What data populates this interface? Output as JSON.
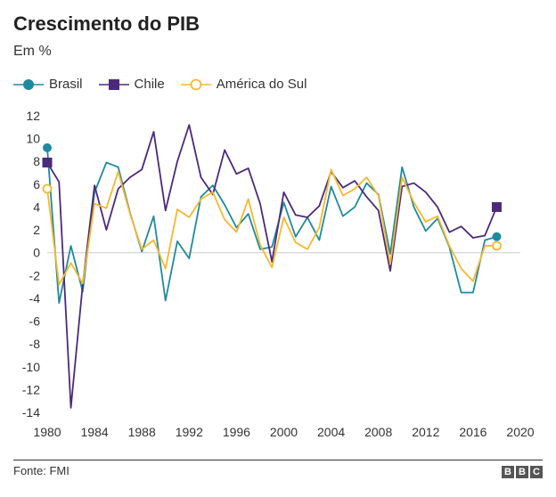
{
  "header": {
    "title": "Crescimento do PIB",
    "subtitle": "Em %"
  },
  "legend": [
    {
      "name": "Brasil",
      "color": "#1f8a9e",
      "marker": "circle-filled"
    },
    {
      "name": "Chile",
      "color": "#4b2a7b",
      "marker": "square-filled"
    },
    {
      "name": "América do Sul",
      "color": "#f5b82e",
      "marker": "circle-open"
    }
  ],
  "footer": {
    "source": "Fonte: FMI",
    "logo_letters": [
      "B",
      "B",
      "C"
    ]
  },
  "chart_data": {
    "type": "line",
    "title": "Crescimento do PIB",
    "ylabel": "Em %",
    "xlabel": "",
    "xlim": [
      1980,
      2020
    ],
    "ylim": [
      -14,
      12
    ],
    "x_ticks": [
      1980,
      1984,
      1988,
      1992,
      1996,
      2000,
      2004,
      2008,
      2012,
      2016,
      2020
    ],
    "y_ticks": [
      12,
      10,
      8,
      6,
      4,
      2,
      0,
      -2,
      -4,
      -6,
      -8,
      -10,
      -12,
      -14
    ],
    "x": [
      1980,
      1981,
      1982,
      1983,
      1984,
      1985,
      1986,
      1987,
      1988,
      1989,
      1990,
      1991,
      1992,
      1993,
      1994,
      1995,
      1996,
      1997,
      1998,
      1999,
      2000,
      2001,
      2002,
      2003,
      2004,
      2005,
      2006,
      2007,
      2008,
      2009,
      2010,
      2011,
      2012,
      2013,
      2014,
      2015,
      2016,
      2017,
      2018
    ],
    "series": [
      {
        "name": "Brasil",
        "color": "#1f8a9e",
        "marker": "circle-filled",
        "values": [
          9.2,
          -4.4,
          0.6,
          -3.4,
          5.3,
          7.9,
          7.5,
          3.5,
          0.1,
          3.2,
          -4.2,
          1.0,
          -0.5,
          4.9,
          5.9,
          4.2,
          2.2,
          3.4,
          0.3,
          0.5,
          4.4,
          1.4,
          3.1,
          1.1,
          5.8,
          3.2,
          4.0,
          6.1,
          5.1,
          -0.1,
          7.5,
          4.0,
          1.9,
          3.0,
          0.5,
          -3.5,
          -3.5,
          1.1,
          1.4
        ]
      },
      {
        "name": "Chile",
        "color": "#4b2a7b",
        "marker": "square-filled",
        "values": [
          7.9,
          6.2,
          -13.6,
          -2.8,
          5.9,
          2.0,
          5.6,
          6.6,
          7.3,
          10.6,
          3.7,
          8.0,
          11.2,
          6.6,
          5.1,
          9.0,
          6.9,
          7.4,
          4.3,
          -0.8,
          5.3,
          3.3,
          3.1,
          4.1,
          7.1,
          5.7,
          6.3,
          4.9,
          3.7,
          -1.6,
          5.8,
          6.1,
          5.3,
          4.0,
          1.8,
          2.3,
          1.3,
          1.5,
          4.0
        ]
      },
      {
        "name": "América do Sul",
        "color": "#f5b82e",
        "marker": "circle-open",
        "values": [
          5.6,
          -2.8,
          -0.9,
          -2.7,
          4.3,
          3.9,
          7.1,
          3.4,
          0.3,
          1.1,
          -1.4,
          3.8,
          3.1,
          4.7,
          5.3,
          2.9,
          1.8,
          4.7,
          0.7,
          -1.3,
          3.1,
          0.9,
          0.3,
          2.2,
          7.3,
          5.0,
          5.6,
          6.6,
          5.0,
          -1.0,
          6.6,
          4.4,
          2.7,
          3.2,
          0.6,
          -1.4,
          -2.5,
          0.6,
          0.6
        ]
      }
    ]
  }
}
